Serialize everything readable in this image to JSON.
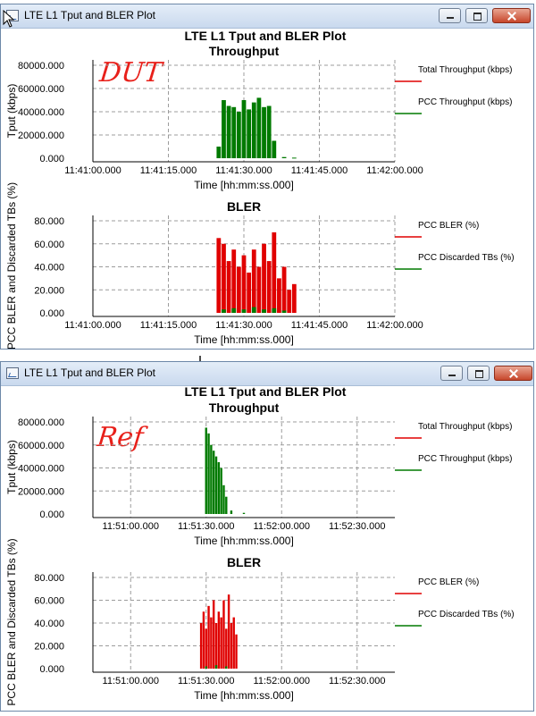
{
  "windows": [
    {
      "title": "LTE L1 Tput and BLER Plot",
      "plot_title": "LTE L1 Tput and BLER Plot",
      "annotation": "DUT",
      "controls": [
        "minimize",
        "maximize",
        "close"
      ]
    },
    {
      "title": "LTE L1 Tput and BLER Plot",
      "plot_title": "LTE L1 Tput and BLER Plot",
      "annotation": "Ref",
      "controls": [
        "minimize",
        "maximize",
        "close"
      ]
    }
  ],
  "colors": {
    "red": "#e00000",
    "green": "#007a00",
    "grid": "#9c9c9c",
    "annotation": "#e8201a"
  },
  "chart_data": [
    {
      "type": "bar",
      "window": 0,
      "title": "Throughput",
      "ylabel": "Tput (kbps)",
      "xlabel": "Time [hh:mm:ss.000]",
      "y_ticks": [
        "80000.000",
        "60000.000",
        "40000.000",
        "20000.000",
        "0.000"
      ],
      "x_ticks": [
        "11:41:00.000",
        "11:41:15.000",
        "11:41:30.000",
        "11:41:45.000",
        "11:42:00.000"
      ],
      "legend": [
        "Total Throughput (kbps)",
        "PCC Throughput (kbps)"
      ],
      "series": [
        {
          "name": "Total Throughput (kbps)",
          "color": "#e00000",
          "x": [],
          "values": []
        },
        {
          "name": "PCC Throughput (kbps)",
          "color": "#007a00",
          "x": [
            "11:41:25",
            "11:41:26",
            "11:41:27",
            "11:41:28",
            "11:41:29",
            "11:41:30",
            "11:41:31",
            "11:41:32",
            "11:41:33",
            "11:41:34",
            "11:41:35",
            "11:41:36",
            "11:41:38",
            "11:41:40"
          ],
          "values": [
            10000,
            50000,
            45000,
            44000,
            40000,
            50000,
            42000,
            48000,
            52000,
            44000,
            45000,
            15000,
            1000,
            500
          ]
        }
      ],
      "xlim": [
        "11:41:00",
        "11:42:00"
      ],
      "ylim": [
        0,
        80000
      ],
      "grid": true,
      "legend_position": "right"
    },
    {
      "type": "bar",
      "window": 0,
      "title": "BLER",
      "ylabel": "PCC BLER and Discarded TBs (%)",
      "xlabel": "Time [hh:mm:ss.000]",
      "y_ticks": [
        "80.000",
        "60.000",
        "40.000",
        "20.000",
        "0.000"
      ],
      "x_ticks": [
        "11:41:00.000",
        "11:41:15.000",
        "11:41:30.000",
        "11:41:45.000",
        "11:42:00.000"
      ],
      "legend": [
        "PCC BLER (%)",
        "PCC Discarded TBs (%)"
      ],
      "series": [
        {
          "name": "PCC BLER (%)",
          "color": "#e00000",
          "x": [
            "11:41:25",
            "11:41:26",
            "11:41:27",
            "11:41:28",
            "11:41:29",
            "11:41:30",
            "11:41:31",
            "11:41:32",
            "11:41:33",
            "11:41:34",
            "11:41:35",
            "11:41:36",
            "11:41:37",
            "11:41:38",
            "11:41:39",
            "11:41:40"
          ],
          "values": [
            65,
            60,
            45,
            55,
            40,
            50,
            35,
            55,
            40,
            60,
            45,
            70,
            30,
            40,
            20,
            25
          ]
        },
        {
          "name": "PCC Discarded TBs (%)",
          "color": "#007a00",
          "x": [
            "11:41:26",
            "11:41:28",
            "11:41:30",
            "11:41:32",
            "11:41:34",
            "11:41:36",
            "11:41:38"
          ],
          "values": [
            3,
            4,
            3,
            5,
            3,
            4,
            2
          ]
        }
      ],
      "xlim": [
        "11:41:00",
        "11:42:00"
      ],
      "ylim": [
        0,
        80
      ],
      "grid": true,
      "legend_position": "right"
    },
    {
      "type": "bar",
      "window": 1,
      "title": "Throughput",
      "ylabel": "Tput (kbps)",
      "xlabel": "Time [hh:mm:ss.000]",
      "y_ticks": [
        "80000.000",
        "60000.000",
        "40000.000",
        "20000.000",
        "0.000"
      ],
      "x_ticks": [
        "11:51:00.000",
        "11:51:30.000",
        "11:52:00.000",
        "11:52:30.000"
      ],
      "legend": [
        "Total Throughput (kbps)",
        "PCC Throughput (kbps)"
      ],
      "series": [
        {
          "name": "Total Throughput (kbps)",
          "color": "#e00000",
          "x": [],
          "values": []
        },
        {
          "name": "PCC Throughput (kbps)",
          "color": "#007a00",
          "x": [
            "11:51:30",
            "11:51:31",
            "11:51:32",
            "11:51:33",
            "11:51:34",
            "11:51:35",
            "11:51:36",
            "11:51:37",
            "11:51:38",
            "11:51:40",
            "11:51:45"
          ],
          "values": [
            75000,
            70000,
            60000,
            55000,
            50000,
            45000,
            40000,
            25000,
            15000,
            3000,
            1000
          ]
        }
      ],
      "xlim": [
        "11:50:45",
        "11:52:45"
      ],
      "ylim": [
        0,
        80000
      ],
      "grid": true,
      "legend_position": "right"
    },
    {
      "type": "bar",
      "window": 1,
      "title": "BLER",
      "ylabel": "PCC BLER and Discarded TBs (%)",
      "xlabel": "Time [hh:mm:ss.000]",
      "y_ticks": [
        "80.000",
        "60.000",
        "40.000",
        "20.000",
        "0.000"
      ],
      "x_ticks": [
        "11:51:00.000",
        "11:51:30.000",
        "11:52:00.000",
        "11:52:30.000"
      ],
      "legend": [
        "PCC BLER (%)",
        "PCC Discarded TBs (%)"
      ],
      "series": [
        {
          "name": "PCC BLER (%)",
          "color": "#e00000",
          "x": [
            "11:51:28",
            "11:51:29",
            "11:51:30",
            "11:51:31",
            "11:51:32",
            "11:51:33",
            "11:51:34",
            "11:51:35",
            "11:51:36",
            "11:51:37",
            "11:51:38",
            "11:51:39",
            "11:51:40",
            "11:51:41",
            "11:51:42"
          ],
          "values": [
            40,
            50,
            35,
            55,
            45,
            60,
            40,
            50,
            45,
            60,
            35,
            65,
            40,
            45,
            30
          ]
        },
        {
          "name": "PCC Discarded TBs (%)",
          "color": "#007a00",
          "x": [
            "11:51:30",
            "11:51:34",
            "11:51:38"
          ],
          "values": [
            2,
            3,
            2
          ]
        }
      ],
      "xlim": [
        "11:50:45",
        "11:52:45"
      ],
      "ylim": [
        0,
        80
      ],
      "grid": true,
      "legend_position": "right"
    }
  ]
}
